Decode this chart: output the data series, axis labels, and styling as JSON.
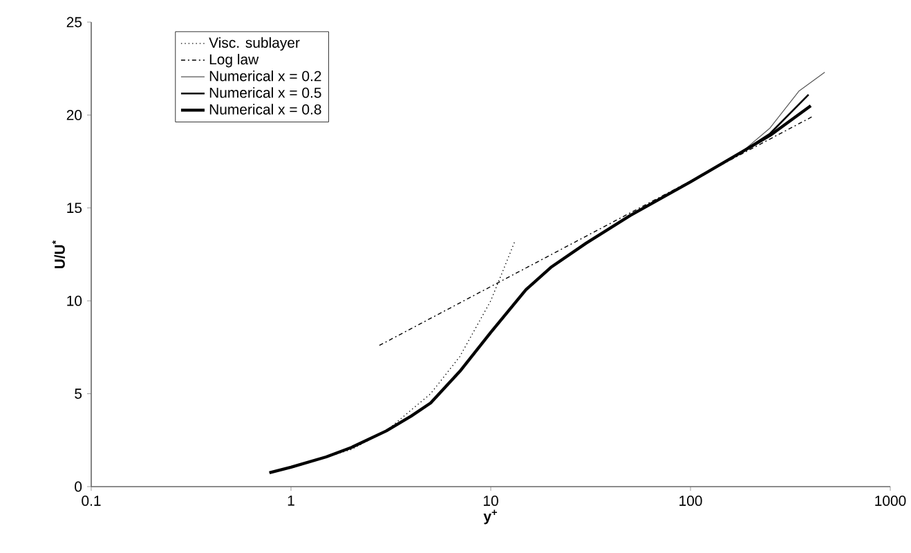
{
  "chart_data": {
    "type": "line",
    "xlabel": "y$^{+}$",
    "ylabel": "U/U$^{*}$",
    "log": "x",
    "xlim": [
      0.1,
      1000
    ],
    "xticks": [
      0.1,
      1,
      10,
      100,
      1000
    ],
    "ylim": [
      0,
      25
    ],
    "yticks": [
      0,
      5,
      10,
      15,
      20,
      25
    ],
    "grid": false,
    "legend": "top left",
    "marker": "none",
    "series": [
      {
        "name": "Visc. sublayer",
        "color": "#000000",
        "line_style": "dotted",
        "x": [
          0.8,
          1,
          2,
          3,
          5,
          7,
          10,
          13.2
        ],
        "values": [
          0.8,
          1,
          2,
          3,
          5,
          7,
          10,
          13.2
        ]
      },
      {
        "name": "Log law",
        "color": "#000000",
        "line_style": "dashdot",
        "x": [
          2.77,
          405
        ],
        "values": [
          7.6,
          19.9
        ]
      },
      {
        "name": "Numerical x = 0.2",
        "color": "#555555",
        "line_style": "solid",
        "x": [
          0.78,
          1,
          1.5,
          2,
          3,
          4,
          5,
          7,
          10,
          15,
          20,
          30,
          50,
          100,
          180,
          250,
          350,
          470
        ],
        "values": [
          0.75,
          1.05,
          1.6,
          2.1,
          3.0,
          3.8,
          4.5,
          6.2,
          8.3,
          10.6,
          11.8,
          13.1,
          14.6,
          16.4,
          18.0,
          19.3,
          21.3,
          22.3
        ]
      },
      {
        "name": "Numerical x = 0.5",
        "color": "#000000",
        "line_style": "solid",
        "x": [
          0.78,
          1,
          1.5,
          2,
          3,
          4,
          5,
          7,
          10,
          15,
          20,
          30,
          50,
          100,
          180,
          250,
          390
        ],
        "values": [
          0.75,
          1.05,
          1.6,
          2.1,
          3.0,
          3.8,
          4.5,
          6.2,
          8.3,
          10.6,
          11.8,
          13.1,
          14.6,
          16.4,
          18.0,
          19.0,
          21.1
        ]
      },
      {
        "name": "Numerical x = 0.8",
        "color": "#000000",
        "line_style": "solid",
        "x": [
          0.78,
          1,
          1.5,
          2,
          3,
          4,
          5,
          7,
          10,
          15,
          20,
          30,
          50,
          100,
          180,
          250,
          400
        ],
        "values": [
          0.75,
          1.05,
          1.6,
          2.1,
          3.0,
          3.8,
          4.5,
          6.2,
          8.3,
          10.6,
          11.8,
          13.1,
          14.6,
          16.4,
          18.0,
          18.9,
          20.5
        ]
      }
    ]
  }
}
